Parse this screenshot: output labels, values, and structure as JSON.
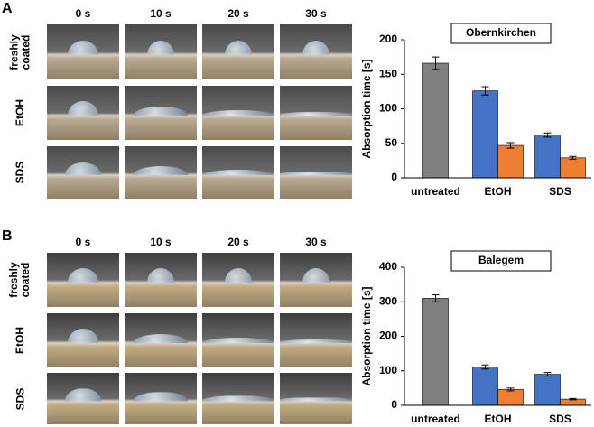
{
  "panels": [
    {
      "label": "A",
      "times": [
        "0 s",
        "10 s",
        "20 s",
        "30 s"
      ],
      "rows": [
        "freshly coated",
        "EtOH",
        "SDS"
      ]
    },
    {
      "label": "B",
      "times": [
        "0 s",
        "10 s",
        "20 s",
        "30 s"
      ],
      "rows": [
        "freshly coated",
        "EtOH",
        "SDS"
      ]
    }
  ],
  "chart_data": [
    {
      "type": "bar",
      "title": "Obernkirchen",
      "y_label": "Absorption time [s]",
      "categories": [
        "untreated",
        "EtOH",
        "SDS"
      ],
      "series": [
        {
          "color": "#808080",
          "values": [
            166,
            null,
            null
          ],
          "errors": [
            9,
            null,
            null
          ]
        },
        {
          "color": "#4472c4",
          "values": [
            null,
            126,
            62
          ],
          "errors": [
            null,
            6,
            3
          ]
        },
        {
          "color": "#ed7d31",
          "values": [
            null,
            47,
            29
          ],
          "errors": [
            null,
            4,
            2
          ]
        }
      ],
      "ylim": [
        0,
        200
      ],
      "yticks": [
        0,
        50,
        100,
        150,
        200
      ]
    },
    {
      "type": "bar",
      "title": "Balegem",
      "y_label": "Absorption time [s]",
      "categories": [
        "untreated",
        "EtOH",
        "SDS"
      ],
      "series": [
        {
          "color": "#808080",
          "values": [
            310,
            null,
            null
          ],
          "errors": [
            10,
            null,
            null
          ]
        },
        {
          "color": "#4472c4",
          "values": [
            null,
            111,
            90
          ],
          "errors": [
            null,
            6,
            5
          ]
        },
        {
          "color": "#ed7d31",
          "values": [
            null,
            46,
            18
          ],
          "errors": [
            null,
            4,
            2
          ]
        }
      ],
      "ylim": [
        0,
        400
      ],
      "yticks": [
        0,
        100,
        200,
        300,
        400
      ]
    }
  ]
}
